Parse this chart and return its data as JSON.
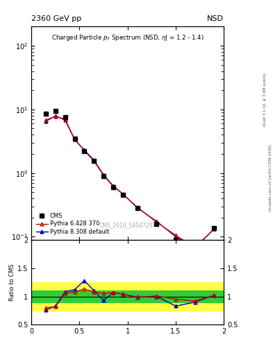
{
  "title_top": "2360 GeV pp",
  "title_top_right": "NSD",
  "main_title": "Charged Particle p_{T} Spectrum (NSD, #eta| = 1.2 - 1.4)",
  "watermark": "CMS_2010_S8547297",
  "cms_x": [
    0.15,
    0.25,
    0.35,
    0.45,
    0.55,
    0.65,
    0.75,
    0.85,
    0.95,
    1.1,
    1.3,
    1.5,
    1.7,
    1.9
  ],
  "cms_y": [
    8.5,
    9.5,
    7.5,
    3.5,
    2.2,
    1.55,
    0.9,
    0.6,
    0.45,
    0.28,
    0.16,
    0.09,
    0.065,
    0.135
  ],
  "pythia6_x": [
    0.15,
    0.25,
    0.35,
    0.45,
    0.55,
    0.65,
    0.75,
    0.85,
    0.95,
    1.1,
    1.3,
    1.5,
    1.7,
    1.9
  ],
  "pythia6_y": [
    6.8,
    7.8,
    7.0,
    3.4,
    2.25,
    1.55,
    0.92,
    0.62,
    0.47,
    0.29,
    0.17,
    0.105,
    0.068,
    0.133
  ],
  "pythia8_x": [
    0.15,
    0.25,
    0.35,
    0.45,
    0.55,
    0.65,
    0.75,
    0.85,
    0.95,
    1.1,
    1.3,
    1.5,
    1.7,
    1.9
  ],
  "pythia8_y": [
    6.5,
    7.9,
    6.8,
    3.35,
    2.3,
    1.6,
    0.94,
    0.63,
    0.47,
    0.285,
    0.175,
    0.1,
    0.067,
    0.133
  ],
  "ratio_p6_x": [
    0.15,
    0.25,
    0.35,
    0.45,
    0.55,
    0.65,
    0.75,
    0.85,
    0.95,
    1.1,
    1.3,
    1.5,
    1.7,
    1.9
  ],
  "ratio_p6_y": [
    0.8,
    0.82,
    1.05,
    1.08,
    1.13,
    1.08,
    1.05,
    1.07,
    1.04,
    0.98,
    1.01,
    0.95,
    0.92,
    1.02
  ],
  "ratio_p8_x": [
    0.15,
    0.25,
    0.35,
    0.45,
    0.55,
    0.65,
    0.75,
    0.85,
    0.95,
    1.1,
    1.3,
    1.5,
    1.7,
    1.9
  ],
  "ratio_p8_y": [
    0.76,
    0.83,
    1.08,
    1.12,
    1.28,
    1.1,
    0.93,
    1.07,
    1.04,
    0.99,
    1.0,
    0.83,
    0.9,
    1.02
  ],
  "green_band_lo": 0.9,
  "green_band_hi": 1.1,
  "yellow_band_lo": 0.75,
  "yellow_band_hi": 1.25,
  "cms_color": "#000000",
  "pythia6_color": "#cc0000",
  "pythia8_color": "#0000cc",
  "green_color": "#33cc33",
  "yellow_color": "#ffff44",
  "xlim": [
    0.0,
    2.0
  ],
  "ylim_main": [
    0.09,
    200
  ],
  "ylim_ratio": [
    0.5,
    2.0
  ],
  "ylabel_ratio": "Ratio to CMS",
  "background_color": "#ffffff"
}
